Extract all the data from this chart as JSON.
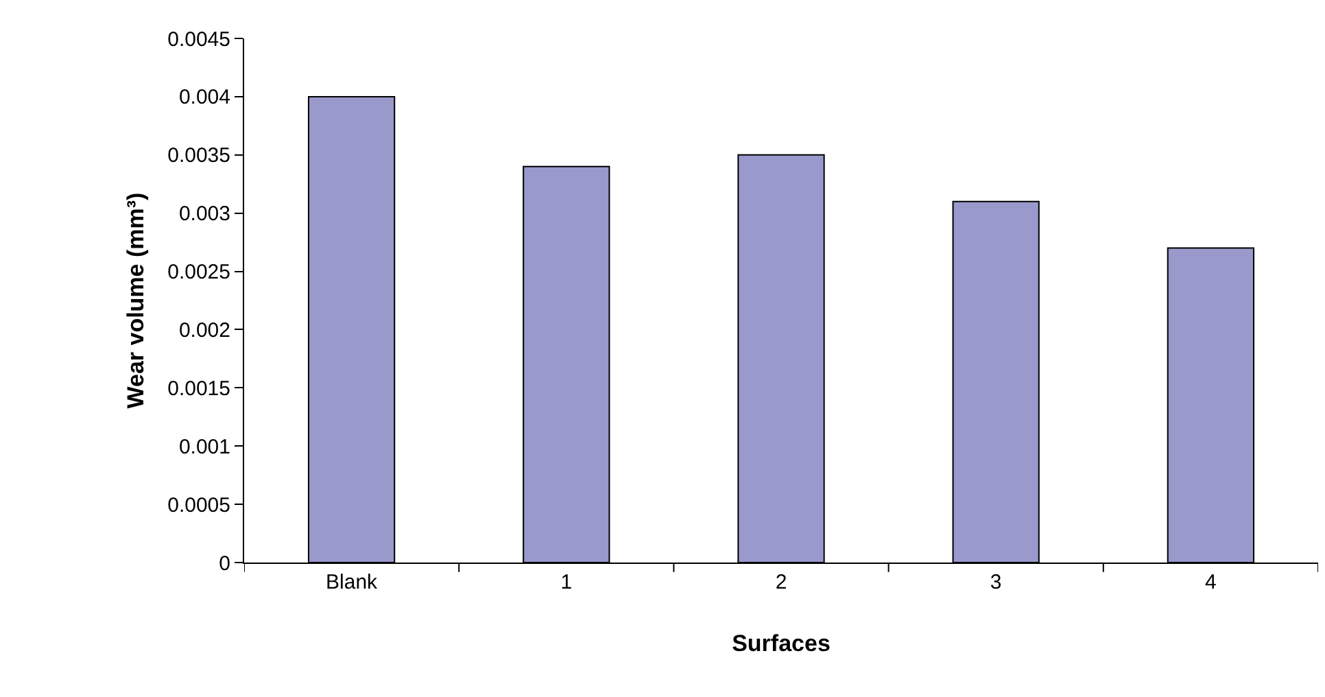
{
  "chart_data": {
    "type": "bar",
    "xlabel": "Surfaces",
    "ylabel": "Wear volume (mm³)",
    "categories": [
      "Blank",
      "1",
      "2",
      "3",
      "4"
    ],
    "values": [
      0.004,
      0.0034,
      0.0035,
      0.0031,
      0.0027
    ],
    "color": "#9999cc",
    "ylim": [
      0,
      0.0045
    ],
    "yticks": [
      0,
      0.0005,
      0.001,
      0.0015,
      0.002,
      0.0025,
      0.003,
      0.0035,
      0.004,
      0.0045
    ],
    "grid": false
  }
}
